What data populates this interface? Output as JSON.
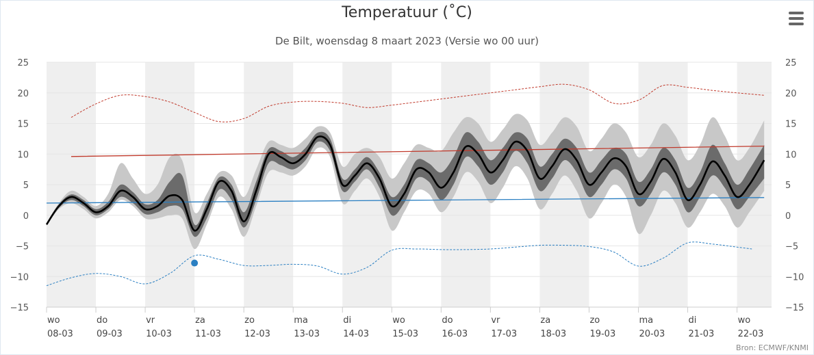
{
  "title": "Temperatuur (˚C)",
  "subtitle": "De Bilt, woensdag 8 maart 2023 (Versie wo 00 uur)",
  "credits": "Bron: ECMWF/KNMI",
  "menu_icon": "hamburger-menu-icon",
  "colors": {
    "median": "#000000",
    "band_inner": "#6b6b6b",
    "band_outer": "#c8c8c8",
    "climate_max": "#c0392b",
    "climate_min": "#2a7fc2",
    "record_max": "#c0392b",
    "record_min": "#2a7fc2",
    "observation": "#2a7fc2",
    "weekend_shade": "#efefef",
    "grid": "#e6e6e6"
  },
  "chart_data": {
    "type": "line",
    "x_unit": "day-offset-from-08-03",
    "xlim": [
      0,
      14.7
    ],
    "ylim": [
      -15,
      25
    ],
    "y_ticks": [
      -15,
      -10,
      -5,
      0,
      5,
      10,
      15,
      20,
      25
    ],
    "y_tick_labels": [
      "−15",
      "−10",
      "−5",
      "0",
      "5",
      "10",
      "15",
      "20",
      "25"
    ],
    "x_ticks": [
      {
        "x": 0,
        "day": "wo",
        "date": "08-03"
      },
      {
        "x": 1,
        "day": "do",
        "date": "09-03"
      },
      {
        "x": 2,
        "day": "vr",
        "date": "10-03"
      },
      {
        "x": 3,
        "day": "za",
        "date": "11-03"
      },
      {
        "x": 4,
        "day": "zo",
        "date": "12-03"
      },
      {
        "x": 5,
        "day": "ma",
        "date": "13-03"
      },
      {
        "x": 6,
        "day": "di",
        "date": "14-03"
      },
      {
        "x": 7,
        "day": "wo",
        "date": "15-03"
      },
      {
        "x": 8,
        "day": "do",
        "date": "16-03"
      },
      {
        "x": 9,
        "day": "vr",
        "date": "17-03"
      },
      {
        "x": 10,
        "day": "za",
        "date": "18-03"
      },
      {
        "x": 11,
        "day": "zo",
        "date": "19-03"
      },
      {
        "x": 12,
        "day": "ma",
        "date": "20-03"
      },
      {
        "x": 13,
        "day": "di",
        "date": "21-03"
      },
      {
        "x": 14,
        "day": "wo",
        "date": "22-03"
      }
    ],
    "shaded_days": [
      0,
      2,
      4,
      6,
      8,
      10,
      12,
      14
    ],
    "median": [
      [
        0.0,
        -1.5
      ],
      [
        0.25,
        1.5
      ],
      [
        0.5,
        3.0
      ],
      [
        0.75,
        2.0
      ],
      [
        1.0,
        0.5
      ],
      [
        1.25,
        1.5
      ],
      [
        1.5,
        4.0
      ],
      [
        1.75,
        3.0
      ],
      [
        2.0,
        1.0
      ],
      [
        2.25,
        1.5
      ],
      [
        2.5,
        3.2
      ],
      [
        2.75,
        2.5
      ],
      [
        3.0,
        -2.5
      ],
      [
        3.25,
        1.0
      ],
      [
        3.5,
        5.5
      ],
      [
        3.75,
        4.0
      ],
      [
        4.0,
        -1.0
      ],
      [
        4.25,
        4.0
      ],
      [
        4.5,
        10.0
      ],
      [
        4.75,
        9.5
      ],
      [
        5.0,
        8.5
      ],
      [
        5.25,
        10.0
      ],
      [
        5.5,
        12.8
      ],
      [
        5.75,
        11.5
      ],
      [
        6.0,
        5.0
      ],
      [
        6.25,
        6.5
      ],
      [
        6.5,
        8.5
      ],
      [
        6.75,
        6.0
      ],
      [
        7.0,
        1.5
      ],
      [
        7.25,
        3.5
      ],
      [
        7.5,
        7.5
      ],
      [
        7.75,
        7.0
      ],
      [
        8.0,
        4.5
      ],
      [
        8.25,
        7.0
      ],
      [
        8.5,
        11.2
      ],
      [
        8.75,
        10.0
      ],
      [
        9.0,
        7.0
      ],
      [
        9.25,
        9.0
      ],
      [
        9.5,
        12.0
      ],
      [
        9.75,
        10.5
      ],
      [
        10.0,
        6.0
      ],
      [
        10.25,
        8.0
      ],
      [
        10.5,
        10.8
      ],
      [
        10.75,
        9.0
      ],
      [
        11.0,
        5.0
      ],
      [
        11.25,
        7.0
      ],
      [
        11.5,
        9.3
      ],
      [
        11.75,
        8.0
      ],
      [
        12.0,
        3.5
      ],
      [
        12.25,
        5.5
      ],
      [
        12.5,
        9.2
      ],
      [
        12.75,
        7.0
      ],
      [
        13.0,
        2.5
      ],
      [
        13.25,
        5.0
      ],
      [
        13.5,
        8.8
      ],
      [
        13.75,
        6.5
      ],
      [
        14.0,
        3.0
      ],
      [
        14.25,
        5.0
      ],
      [
        14.55,
        9.0
      ]
    ],
    "band_inner": [
      [
        0.0,
        -1.6,
        -1.4
      ],
      [
        0.25,
        1.2,
        1.8
      ],
      [
        0.5,
        2.5,
        3.4
      ],
      [
        0.75,
        1.5,
        2.5
      ],
      [
        1.0,
        0.0,
        1.0
      ],
      [
        1.25,
        1.0,
        2.2
      ],
      [
        1.5,
        3.0,
        5.0
      ],
      [
        1.75,
        2.0,
        3.8
      ],
      [
        2.0,
        0.2,
        1.8
      ],
      [
        2.25,
        0.5,
        2.5
      ],
      [
        2.5,
        1.5,
        5.5
      ],
      [
        2.75,
        1.0,
        6.5
      ],
      [
        3.0,
        -3.5,
        -1.5
      ],
      [
        3.25,
        -0.5,
        2.0
      ],
      [
        3.5,
        4.2,
        6.2
      ],
      [
        3.75,
        2.5,
        5.0
      ],
      [
        4.0,
        -2.0,
        0.5
      ],
      [
        4.25,
        2.5,
        5.5
      ],
      [
        4.5,
        8.5,
        10.8
      ],
      [
        4.75,
        8.2,
        10.5
      ],
      [
        5.0,
        7.5,
        9.5
      ],
      [
        5.25,
        9.0,
        11.0
      ],
      [
        5.5,
        12.0,
        13.5
      ],
      [
        5.75,
        10.5,
        12.5
      ],
      [
        6.0,
        4.0,
        6.0
      ],
      [
        6.25,
        5.5,
        7.5
      ],
      [
        6.5,
        7.5,
        9.5
      ],
      [
        6.75,
        4.5,
        7.0
      ],
      [
        7.0,
        0.0,
        3.0
      ],
      [
        7.25,
        2.0,
        5.0
      ],
      [
        7.5,
        6.0,
        9.0
      ],
      [
        7.75,
        5.5,
        8.5
      ],
      [
        8.0,
        2.5,
        7.0
      ],
      [
        8.25,
        5.0,
        9.5
      ],
      [
        8.5,
        9.5,
        13.5
      ],
      [
        8.75,
        8.0,
        12.0
      ],
      [
        9.0,
        5.0,
        9.0
      ],
      [
        9.25,
        7.0,
        11.0
      ],
      [
        9.5,
        10.5,
        13.5
      ],
      [
        9.75,
        8.5,
        12.5
      ],
      [
        10.0,
        4.0,
        8.0
      ],
      [
        10.25,
        6.0,
        10.0
      ],
      [
        10.5,
        9.0,
        12.5
      ],
      [
        10.75,
        7.0,
        11.0
      ],
      [
        11.0,
        3.0,
        7.0
      ],
      [
        11.25,
        5.0,
        9.0
      ],
      [
        11.5,
        7.5,
        11.0
      ],
      [
        11.75,
        6.0,
        10.0
      ],
      [
        12.0,
        1.5,
        5.5
      ],
      [
        12.25,
        3.5,
        7.5
      ],
      [
        12.5,
        7.0,
        11.0
      ],
      [
        12.75,
        5.0,
        9.0
      ],
      [
        13.0,
        0.5,
        4.5
      ],
      [
        13.25,
        3.0,
        7.0
      ],
      [
        13.5,
        6.5,
        11.5
      ],
      [
        13.75,
        4.5,
        8.5
      ],
      [
        14.0,
        1.0,
        5.0
      ],
      [
        14.25,
        3.0,
        7.5
      ],
      [
        14.55,
        6.0,
        11.5
      ]
    ],
    "band_outer": [
      [
        0.0,
        -1.7,
        -1.3
      ],
      [
        0.25,
        1.0,
        2.0
      ],
      [
        0.5,
        2.0,
        4.0
      ],
      [
        0.75,
        1.0,
        3.0
      ],
      [
        1.0,
        -0.5,
        1.5
      ],
      [
        1.25,
        0.5,
        3.5
      ],
      [
        1.5,
        2.5,
        8.5
      ],
      [
        1.75,
        1.5,
        6.0
      ],
      [
        2.0,
        -0.5,
        3.5
      ],
      [
        2.25,
        -0.5,
        5.0
      ],
      [
        2.5,
        0.0,
        9.5
      ],
      [
        2.75,
        -0.5,
        9.0
      ],
      [
        3.0,
        -5.5,
        0.5
      ],
      [
        3.25,
        -1.5,
        3.5
      ],
      [
        3.5,
        3.0,
        7.0
      ],
      [
        3.75,
        1.0,
        6.5
      ],
      [
        4.0,
        -3.5,
        3.0
      ],
      [
        4.25,
        1.5,
        7.5
      ],
      [
        4.5,
        7.0,
        12.0
      ],
      [
        4.75,
        7.0,
        11.5
      ],
      [
        5.0,
        6.5,
        11.0
      ],
      [
        5.25,
        8.0,
        12.5
      ],
      [
        5.5,
        11.0,
        14.5
      ],
      [
        5.75,
        9.5,
        13.5
      ],
      [
        6.0,
        2.0,
        8.0
      ],
      [
        6.25,
        4.0,
        10.0
      ],
      [
        6.5,
        6.0,
        11.0
      ],
      [
        6.75,
        3.0,
        9.5
      ],
      [
        7.0,
        -2.5,
        6.0
      ],
      [
        7.25,
        0.5,
        8.5
      ],
      [
        7.5,
        4.0,
        11.5
      ],
      [
        7.75,
        3.5,
        11.0
      ],
      [
        8.0,
        0.5,
        10.5
      ],
      [
        8.25,
        3.0,
        13.5
      ],
      [
        8.5,
        7.0,
        16.0
      ],
      [
        8.75,
        5.5,
        15.0
      ],
      [
        9.0,
        2.0,
        12.0
      ],
      [
        9.25,
        4.5,
        14.0
      ],
      [
        9.5,
        8.0,
        16.5
      ],
      [
        9.75,
        6.0,
        15.5
      ],
      [
        10.0,
        1.0,
        11.5
      ],
      [
        10.25,
        3.5,
        13.5
      ],
      [
        10.5,
        6.5,
        16.0
      ],
      [
        10.75,
        4.0,
        14.5
      ],
      [
        11.0,
        -0.5,
        10.5
      ],
      [
        11.25,
        2.0,
        12.5
      ],
      [
        11.5,
        5.0,
        15.0
      ],
      [
        11.75,
        3.0,
        13.5
      ],
      [
        12.0,
        -3.0,
        9.5
      ],
      [
        12.25,
        0.0,
        11.5
      ],
      [
        12.5,
        4.0,
        15.0
      ],
      [
        12.75,
        2.0,
        13.0
      ],
      [
        13.0,
        -2.0,
        9.0
      ],
      [
        13.25,
        0.5,
        11.5
      ],
      [
        13.5,
        3.5,
        16.0
      ],
      [
        13.75,
        1.5,
        13.0
      ],
      [
        14.0,
        -2.0,
        9.0
      ],
      [
        14.25,
        0.5,
        11.0
      ],
      [
        14.55,
        4.0,
        15.5
      ]
    ],
    "climate_max": [
      [
        0.5,
        9.6
      ],
      [
        14.55,
        11.3
      ]
    ],
    "climate_min": [
      [
        0.0,
        2.0
      ],
      [
        14.55,
        2.9
      ]
    ],
    "record_max": [
      [
        0.5,
        16.0
      ],
      [
        1.0,
        18.2
      ],
      [
        1.5,
        19.6
      ],
      [
        2.0,
        19.4
      ],
      [
        2.5,
        18.5
      ],
      [
        3.0,
        16.8
      ],
      [
        3.5,
        15.3
      ],
      [
        4.0,
        15.8
      ],
      [
        4.5,
        17.8
      ],
      [
        5.0,
        18.5
      ],
      [
        5.5,
        18.6
      ],
      [
        6.0,
        18.3
      ],
      [
        6.5,
        17.6
      ],
      [
        7.0,
        18.0
      ],
      [
        7.5,
        18.5
      ],
      [
        8.0,
        19.0
      ],
      [
        8.5,
        19.5
      ],
      [
        9.0,
        20.0
      ],
      [
        9.5,
        20.5
      ],
      [
        10.0,
        21.0
      ],
      [
        10.5,
        21.4
      ],
      [
        11.0,
        20.5
      ],
      [
        11.5,
        18.3
      ],
      [
        12.0,
        18.8
      ],
      [
        12.5,
        21.2
      ],
      [
        13.0,
        20.9
      ],
      [
        13.5,
        20.4
      ],
      [
        14.0,
        20.0
      ],
      [
        14.55,
        19.6
      ]
    ],
    "record_min": [
      [
        0.0,
        -11.5
      ],
      [
        0.5,
        -10.2
      ],
      [
        1.0,
        -9.5
      ],
      [
        1.5,
        -10.0
      ],
      [
        2.0,
        -11.2
      ],
      [
        2.5,
        -9.5
      ],
      [
        3.0,
        -6.6
      ],
      [
        3.5,
        -7.2
      ],
      [
        4.0,
        -8.2
      ],
      [
        4.5,
        -8.2
      ],
      [
        5.0,
        -8.0
      ],
      [
        5.5,
        -8.3
      ],
      [
        6.0,
        -9.6
      ],
      [
        6.5,
        -8.5
      ],
      [
        7.0,
        -5.7
      ],
      [
        7.5,
        -5.5
      ],
      [
        8.0,
        -5.6
      ],
      [
        8.5,
        -5.6
      ],
      [
        9.0,
        -5.5
      ],
      [
        9.5,
        -5.2
      ],
      [
        10.0,
        -4.9
      ],
      [
        10.5,
        -4.9
      ],
      [
        11.0,
        -5.1
      ],
      [
        11.5,
        -6.0
      ],
      [
        12.0,
        -8.3
      ],
      [
        12.5,
        -7.0
      ],
      [
        13.0,
        -4.5
      ],
      [
        13.5,
        -4.7
      ],
      [
        14.0,
        -5.2
      ],
      [
        14.3,
        -5.5
      ]
    ],
    "observation": [
      [
        3.0,
        -7.8
      ]
    ]
  }
}
